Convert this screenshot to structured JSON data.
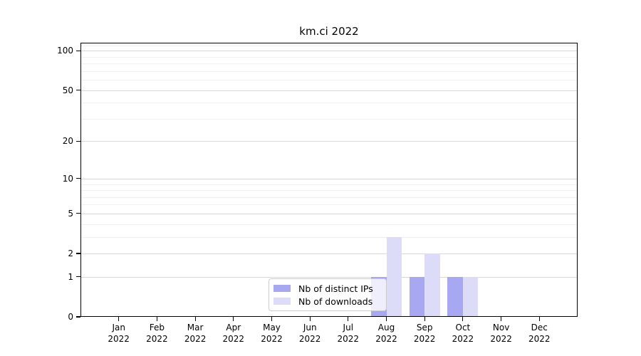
{
  "chart_data": {
    "type": "bar",
    "title": "km.ci 2022",
    "categories": [
      "Jan 2022",
      "Feb 2022",
      "Mar 2022",
      "Apr 2022",
      "May 2022",
      "Jun 2022",
      "Jul 2022",
      "Aug 2022",
      "Sep 2022",
      "Oct 2022",
      "Nov 2022",
      "Dec 2022"
    ],
    "series": [
      {
        "name": "Nb of distinct IPs",
        "color": "#a8a8f2",
        "values": [
          0,
          0,
          0,
          0,
          0,
          0,
          0,
          1,
          1,
          1,
          0,
          0
        ]
      },
      {
        "name": "Nb of downloads",
        "color": "#dcdcf8",
        "values": [
          0,
          0,
          0,
          0,
          0,
          0,
          0,
          3,
          2,
          1,
          0,
          0
        ]
      }
    ],
    "xlabel": "",
    "ylabel": "",
    "y_scale": "log1p",
    "ylim": [
      0,
      115
    ],
    "y_ticks": [
      0,
      1,
      2,
      5,
      10,
      20,
      50,
      100
    ],
    "y_minor_gridlines": [
      3,
      4,
      6,
      7,
      8,
      9,
      30,
      40,
      60,
      70,
      80,
      90,
      110
    ],
    "grid": "on",
    "legend_position": "inside lower center",
    "colors": {
      "axis": "#000000",
      "grid_major": "#d8d8d8",
      "grid_minor": "#efefef",
      "background": "#ffffff"
    }
  }
}
